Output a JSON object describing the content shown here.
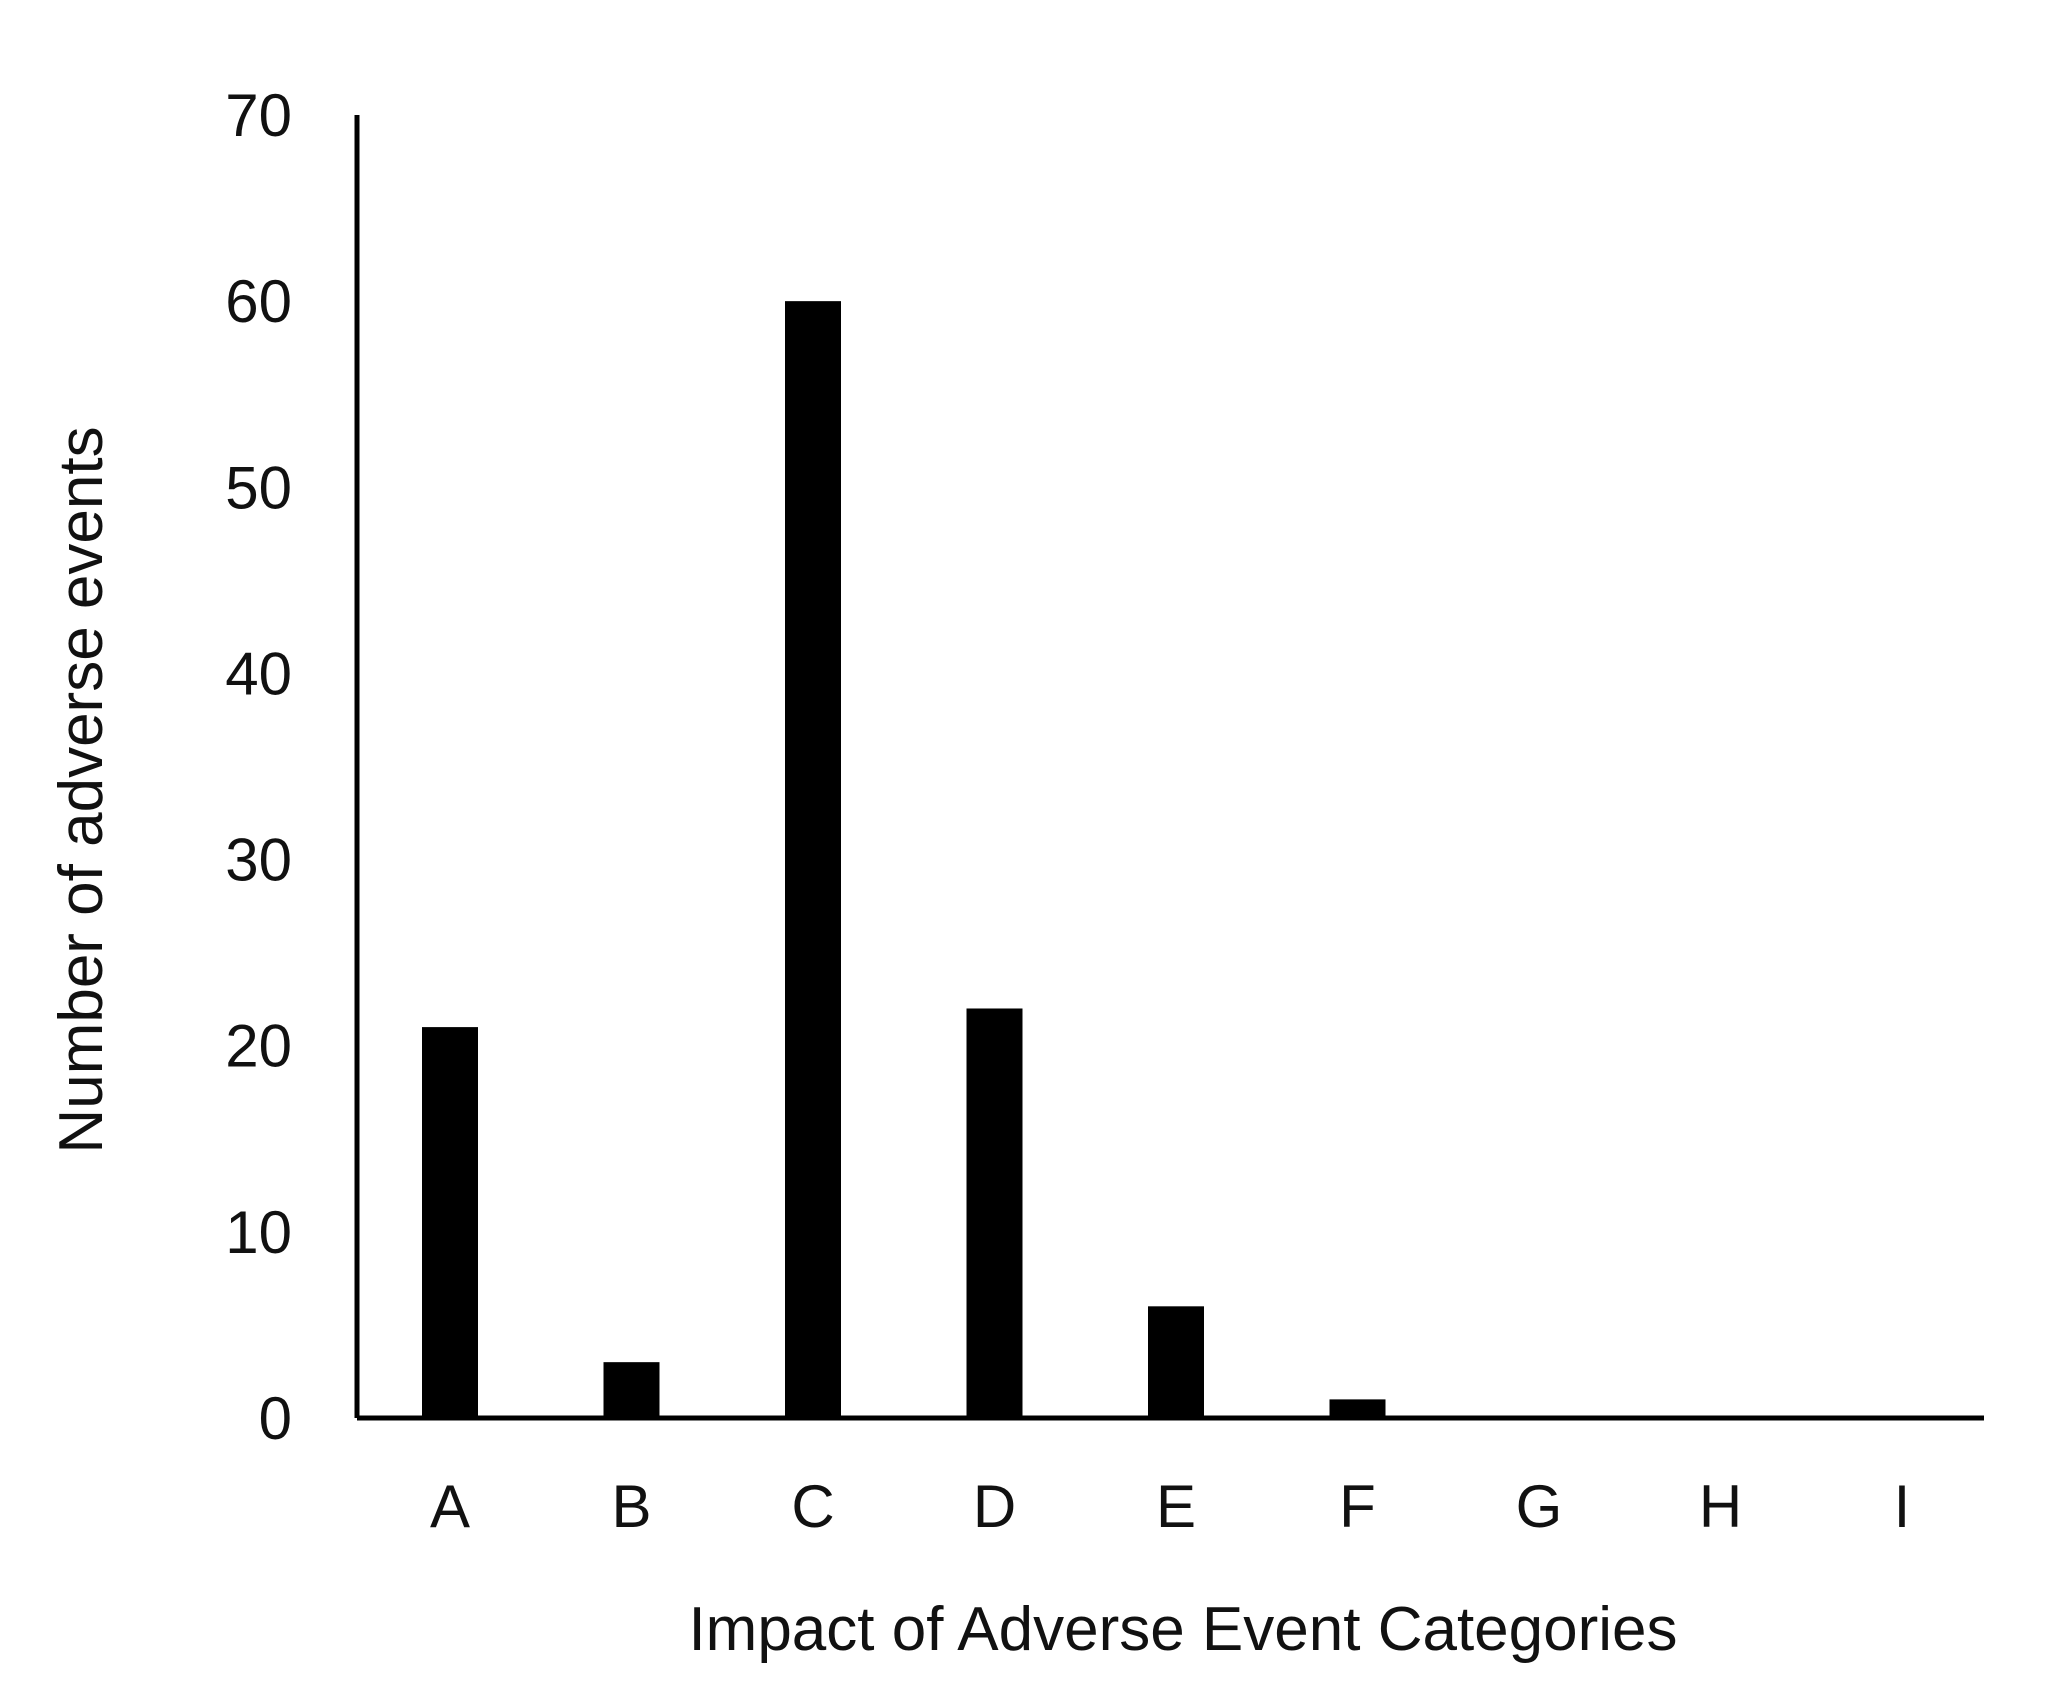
{
  "chart_data": {
    "type": "bar",
    "categories": [
      "A",
      "B",
      "C",
      "D",
      "E",
      "F",
      "G",
      "H",
      "I"
    ],
    "values": [
      21,
      3,
      60,
      22,
      6,
      1,
      0,
      0,
      0
    ],
    "title": "",
    "xlabel": "Impact  of Adverse Event Categories",
    "ylabel": "Number of adverse events",
    "ylim": [
      0,
      70
    ],
    "yticks": [
      0,
      10,
      20,
      30,
      40,
      50,
      60,
      70
    ],
    "grid": false,
    "bar_color": "#000000"
  }
}
